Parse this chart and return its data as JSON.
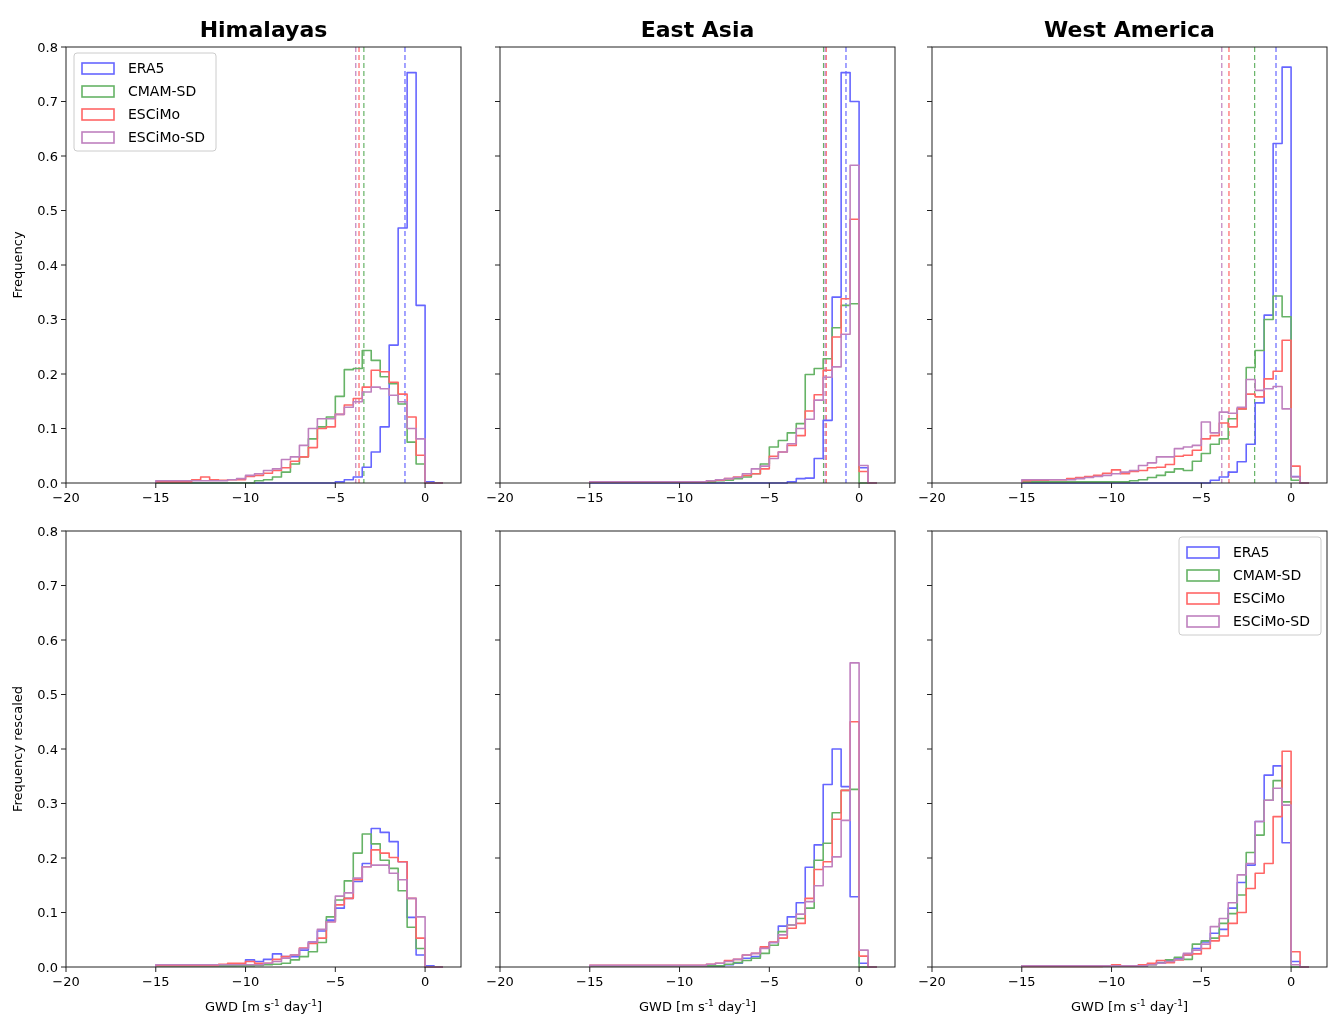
{
  "chart_data": [
    {
      "type": "histogram",
      "title": "Himalayas",
      "ylabel": "Frequency",
      "legend": "top left",
      "xlim": [
        -20,
        2
      ],
      "ylim": [
        0,
        0.8
      ],
      "xticks": [
        -20,
        -15,
        -10,
        -5,
        0
      ],
      "yticks": [
        {
          "value": 0,
          "label": "0.0"
        },
        0.1,
        0.2,
        0.3,
        0.4,
        0.5,
        0.6,
        0.7,
        0.8
      ],
      "bins": [
        -15,
        -14.5,
        -14,
        -13.5,
        -13,
        -12.5,
        -12,
        -11.5,
        -11,
        -10.5,
        -10,
        -9.5,
        -9,
        -8.5,
        -8,
        -7.5,
        -7,
        -6.5,
        -6,
        -5.5,
        -5,
        -4.5,
        -4,
        -3.5,
        -3,
        -2.5,
        -2,
        -1.5,
        -1,
        -0.5,
        0,
        0.5,
        1
      ],
      "series": [
        {
          "name": "ERA5",
          "color": "#6666ff",
          "values": [
            0,
            0,
            0,
            0,
            0,
            0,
            0,
            0,
            0,
            0,
            0,
            0,
            0,
            0,
            0,
            0,
            0,
            0,
            0,
            0,
            0.002,
            0.006,
            0.011,
            0.029,
            0.057,
            0.103,
            0.253,
            0.468,
            0.753,
            0.326,
            0.002,
            0
          ]
        },
        {
          "name": "CMAM-SD",
          "color": "#66b366",
          "values": [
            0,
            0,
            0,
            0,
            0,
            0,
            0,
            0,
            0,
            0,
            0,
            0.004,
            0.006,
            0.011,
            0.02,
            0.035,
            0.048,
            0.081,
            0.103,
            0.121,
            0.159,
            0.208,
            0.21,
            0.243,
            0.225,
            0.195,
            0.182,
            0.145,
            0.075,
            0.035,
            0,
            0
          ]
        },
        {
          "name": "ESCiMo",
          "color": "#ff6666",
          "values": [
            0.002,
            0.002,
            0.002,
            0.002,
            0.006,
            0.011,
            0.006,
            0.005,
            0.006,
            0.006,
            0.012,
            0.014,
            0.018,
            0.023,
            0.028,
            0.04,
            0.048,
            0.065,
            0.1,
            0.103,
            0.126,
            0.143,
            0.155,
            0.176,
            0.207,
            0.204,
            0.185,
            0.163,
            0.121,
            0.051,
            0,
            0
          ]
        },
        {
          "name": "ESCiMo-SD",
          "color": "#bf80bf",
          "values": [
            0.004,
            0.004,
            0.004,
            0.004,
            0.004,
            0.004,
            0.004,
            0.004,
            0.006,
            0.008,
            0.014,
            0.017,
            0.023,
            0.026,
            0.043,
            0.048,
            0.069,
            0.1,
            0.118,
            0.118,
            0.126,
            0.139,
            0.149,
            0.167,
            0.176,
            0.173,
            0.161,
            0.149,
            0.1,
            0.081,
            0,
            0
          ]
        }
      ],
      "ref_lines": [
        {
          "axis": "x",
          "value": -1.12,
          "color": "#6666ff",
          "line_style": "dashed"
        },
        {
          "axis": "x",
          "value": -3.41,
          "color": "#66b366",
          "line_style": "dashed"
        },
        {
          "axis": "x",
          "value": -3.68,
          "color": "#ff6666",
          "line_style": "dashed"
        },
        {
          "axis": "x",
          "value": -3.86,
          "color": "#bf80bf",
          "line_style": "dashed"
        }
      ]
    },
    {
      "type": "histogram",
      "title": "East Asia",
      "tick_labels": "x",
      "xlim": [
        -20,
        2
      ],
      "ylim": [
        0,
        0.8
      ],
      "xticks": [
        -20,
        -15,
        -10,
        -5,
        0
      ],
      "yticks": [
        0,
        0.1,
        0.2,
        0.3,
        0.4,
        0.5,
        0.6,
        0.7,
        0.8
      ],
      "bins": [
        -15,
        -14.5,
        -14,
        -13.5,
        -13,
        -12.5,
        -12,
        -11.5,
        -11,
        -10.5,
        -10,
        -9.5,
        -9,
        -8.5,
        -8,
        -7.5,
        -7,
        -6.5,
        -6,
        -5.5,
        -5,
        -4.5,
        -4,
        -3.5,
        -3,
        -2.5,
        -2,
        -1.5,
        -1,
        -0.5,
        0,
        0.5,
        1
      ],
      "series": [
        {
          "color": "#6666ff",
          "values": [
            0,
            0,
            0,
            0,
            0,
            0,
            0,
            0,
            0,
            0,
            0,
            0,
            0,
            0,
            0,
            0,
            0,
            0,
            0,
            0,
            0,
            0,
            0.002,
            0.008,
            0.009,
            0.045,
            0.115,
            0.341,
            0.753,
            0.7,
            0.028,
            0
          ]
        },
        {
          "color": "#66b366",
          "values": [
            0.002,
            0.002,
            0.002,
            0.002,
            0.002,
            0.002,
            0.002,
            0.002,
            0.002,
            0.002,
            0.002,
            0.002,
            0.002,
            0.002,
            0.004,
            0.005,
            0.008,
            0.011,
            0.017,
            0.035,
            0.066,
            0.078,
            0.092,
            0.109,
            0.199,
            0.21,
            0.228,
            0.285,
            0.326,
            0.329,
            0,
            0
          ]
        },
        {
          "color": "#ff6666",
          "values": [
            0.002,
            0.002,
            0.002,
            0.002,
            0.002,
            0.002,
            0.002,
            0.002,
            0.002,
            0.002,
            0.002,
            0.002,
            0.002,
            0.004,
            0.005,
            0.008,
            0.011,
            0.014,
            0.017,
            0.026,
            0.049,
            0.057,
            0.069,
            0.087,
            0.132,
            0.162,
            0.207,
            0.268,
            0.338,
            0.484,
            0.021,
            0
          ]
        },
        {
          "color": "#bf80bf",
          "values": [
            0.002,
            0.002,
            0.002,
            0.002,
            0.002,
            0.002,
            0.002,
            0.002,
            0.002,
            0.002,
            0.002,
            0.002,
            0.002,
            0.004,
            0.006,
            0.008,
            0.01,
            0.017,
            0.026,
            0.031,
            0.045,
            0.057,
            0.072,
            0.1,
            0.117,
            0.152,
            0.194,
            0.213,
            0.273,
            0.583,
            0.032,
            0
          ]
        }
      ],
      "ref_lines": [
        {
          "axis": "x",
          "value": -0.73,
          "color": "#6666ff",
          "line_style": "dashed"
        },
        {
          "axis": "x",
          "value": -1.98,
          "color": "#66b366",
          "line_style": "dashed"
        },
        {
          "axis": "x",
          "value": -1.83,
          "color": "#ff6666",
          "line_style": "dashed"
        },
        {
          "axis": "x",
          "value": -1.89,
          "color": "#bf80bf",
          "line_style": "dashed"
        }
      ]
    },
    {
      "type": "histogram",
      "title": "West America",
      "tick_labels": "x",
      "xlim": [
        -20,
        2
      ],
      "ylim": [
        0,
        0.8
      ],
      "xticks": [
        -20,
        -15,
        -10,
        -5,
        0
      ],
      "yticks": [
        0,
        0.1,
        0.2,
        0.3,
        0.4,
        0.5,
        0.6,
        0.7,
        0.8
      ],
      "bins": [
        -15,
        -14.5,
        -14,
        -13.5,
        -13,
        -12.5,
        -12,
        -11.5,
        -11,
        -10.5,
        -10,
        -9.5,
        -9,
        -8.5,
        -8,
        -7.5,
        -7,
        -6.5,
        -6,
        -5.5,
        -5,
        -4.5,
        -4,
        -3.5,
        -3,
        -2.5,
        -2,
        -1.5,
        -1,
        -0.5,
        0,
        0.5,
        1
      ],
      "series": [
        {
          "color": "#6666ff",
          "values": [
            0,
            0,
            0,
            0,
            0,
            0,
            0,
            0,
            0,
            0,
            0,
            0,
            0,
            0,
            0,
            0,
            0,
            0,
            0,
            0,
            0,
            0.005,
            0.011,
            0.02,
            0.039,
            0.071,
            0.147,
            0.308,
            0.623,
            0.763,
            0.012,
            0
          ]
        },
        {
          "color": "#66b366",
          "values": [
            0.002,
            0.002,
            0.002,
            0.002,
            0.002,
            0.002,
            0.002,
            0.002,
            0.002,
            0.002,
            0.002,
            0.002,
            0.004,
            0.006,
            0.01,
            0.014,
            0.02,
            0.026,
            0.023,
            0.04,
            0.054,
            0.071,
            0.081,
            0.118,
            0.136,
            0.212,
            0.243,
            0.3,
            0.343,
            0.305,
            0.005,
            0
          ]
        },
        {
          "color": "#ff6666",
          "values": [
            0.004,
            0.005,
            0.005,
            0.006,
            0.006,
            0.008,
            0.01,
            0.012,
            0.014,
            0.018,
            0.024,
            0.017,
            0.021,
            0.023,
            0.028,
            0.029,
            0.034,
            0.049,
            0.051,
            0.06,
            0.081,
            0.087,
            0.11,
            0.103,
            0.136,
            0.163,
            0.158,
            0.191,
            0.205,
            0.262,
            0.031,
            0
          ]
        },
        {
          "color": "#bf80bf",
          "values": [
            0.006,
            0.006,
            0.006,
            0.006,
            0.006,
            0.006,
            0.008,
            0.01,
            0.012,
            0.014,
            0.017,
            0.02,
            0.023,
            0.032,
            0.037,
            0.048,
            0.048,
            0.063,
            0.066,
            0.069,
            0.112,
            0.092,
            0.13,
            0.128,
            0.139,
            0.19,
            0.17,
            0.173,
            0.177,
            0.136,
            0.011,
            0
          ]
        }
      ],
      "ref_lines": [
        {
          "axis": "x",
          "value": -0.84,
          "color": "#6666ff",
          "line_style": "dashed"
        },
        {
          "axis": "x",
          "value": -2.03,
          "color": "#66b366",
          "line_style": "dashed"
        },
        {
          "axis": "x",
          "value": -3.46,
          "color": "#ff6666",
          "line_style": "dashed"
        },
        {
          "axis": "x",
          "value": -3.86,
          "color": "#bf80bf",
          "line_style": "dashed"
        }
      ]
    },
    {
      "type": "histogram",
      "ylabel": "Frequency rescaled",
      "xlabel": "GWD [m s$^{-1}$ day$^{-1}$]",
      "xlim": [
        -20,
        2
      ],
      "ylim": [
        0,
        0.8
      ],
      "xticks": [
        -20,
        -15,
        -10,
        -5,
        0
      ],
      "yticks": [
        {
          "value": 0,
          "label": "0.0"
        },
        0.1,
        0.2,
        0.3,
        0.4,
        0.5,
        0.6,
        0.7,
        0.8
      ],
      "bins": [
        -15,
        -14.5,
        -14,
        -13.5,
        -13,
        -12.5,
        -12,
        -11.5,
        -11,
        -10.5,
        -10,
        -9.5,
        -9,
        -8.5,
        -8,
        -7.5,
        -7,
        -6.5,
        -6,
        -5.5,
        -5,
        -4.5,
        -4,
        -3.5,
        -3,
        -2.5,
        -2,
        -1.5,
        -1,
        -0.5,
        0,
        0.5,
        1
      ],
      "series": [
        {
          "color": "#6666ff",
          "values": [
            0.003,
            0.003,
            0.003,
            0.003,
            0.003,
            0.003,
            0.003,
            0.003,
            0.003,
            0.005,
            0.013,
            0.01,
            0.014,
            0.024,
            0.019,
            0.019,
            0.031,
            0.046,
            0.066,
            0.086,
            0.108,
            0.126,
            0.157,
            0.19,
            0.254,
            0.247,
            0.23,
            0.193,
            0.091,
            0.022,
            0.002,
            0
          ]
        },
        {
          "color": "#66b366",
          "values": [
            0.002,
            0.002,
            0.002,
            0.002,
            0.002,
            0.002,
            0.002,
            0.002,
            0.002,
            0.002,
            0.002,
            0.003,
            0.004,
            0.005,
            0.007,
            0.013,
            0.019,
            0.028,
            0.045,
            0.092,
            0.123,
            0.158,
            0.209,
            0.244,
            0.226,
            0.196,
            0.181,
            0.14,
            0.073,
            0.034,
            0,
            0
          ]
        },
        {
          "color": "#ff6666",
          "values": [
            0.003,
            0.003,
            0.003,
            0.003,
            0.003,
            0.003,
            0.003,
            0.005,
            0.007,
            0.007,
            0.01,
            0.007,
            0.007,
            0.014,
            0.019,
            0.022,
            0.035,
            0.043,
            0.053,
            0.083,
            0.114,
            0.126,
            0.16,
            0.184,
            0.215,
            0.209,
            0.201,
            0.193,
            0.126,
            0.053,
            0,
            0
          ]
        },
        {
          "color": "#bf80bf",
          "values": [
            0.004,
            0.004,
            0.004,
            0.004,
            0.004,
            0.004,
            0.004,
            0.004,
            0.004,
            0.004,
            0.004,
            0.004,
            0.007,
            0.01,
            0.016,
            0.022,
            0.034,
            0.046,
            0.069,
            0.083,
            0.13,
            0.136,
            0.163,
            0.184,
            0.187,
            0.187,
            0.172,
            0.16,
            0.126,
            0.092,
            0,
            0
          ]
        }
      ]
    },
    {
      "type": "histogram",
      "xlabel": "GWD [m s$^{-1}$ day$^{-1}$]",
      "tick_labels": "x",
      "xlim": [
        -20,
        2
      ],
      "ylim": [
        0,
        0.8
      ],
      "xticks": [
        -20,
        -15,
        -10,
        -5,
        0
      ],
      "yticks": [
        0,
        0.1,
        0.2,
        0.3,
        0.4,
        0.5,
        0.6,
        0.7,
        0.8
      ],
      "bins": [
        -15,
        -14.5,
        -14,
        -13.5,
        -13,
        -12.5,
        -12,
        -11.5,
        -11,
        -10.5,
        -10,
        -9.5,
        -9,
        -8.5,
        -8,
        -7.5,
        -7,
        -6.5,
        -6,
        -5.5,
        -5,
        -4.5,
        -4,
        -3.5,
        -3,
        -2.5,
        -2,
        -1.5,
        -1,
        -0.5,
        0,
        0.5,
        1
      ],
      "series": [
        {
          "color": "#6666ff",
          "values": [
            0.002,
            0.002,
            0.002,
            0.002,
            0.002,
            0.002,
            0.002,
            0.002,
            0.002,
            0.002,
            0.002,
            0.002,
            0.002,
            0.002,
            0.002,
            0.004,
            0.007,
            0.016,
            0.019,
            0.035,
            0.045,
            0.075,
            0.092,
            0.118,
            0.183,
            0.224,
            0.335,
            0.4,
            0.331,
            0.129,
            0.007,
            0
          ]
        },
        {
          "color": "#66b366",
          "values": [
            0.002,
            0.002,
            0.002,
            0.002,
            0.002,
            0.002,
            0.002,
            0.002,
            0.002,
            0.002,
            0.002,
            0.002,
            0.002,
            0.002,
            0.002,
            0.005,
            0.008,
            0.012,
            0.016,
            0.025,
            0.04,
            0.065,
            0.077,
            0.089,
            0.108,
            0.196,
            0.227,
            0.283,
            0.324,
            0.326,
            0,
            0
          ]
        },
        {
          "color": "#ff6666",
          "values": [
            0.003,
            0.003,
            0.003,
            0.003,
            0.003,
            0.003,
            0.003,
            0.003,
            0.003,
            0.003,
            0.003,
            0.003,
            0.003,
            0.005,
            0.007,
            0.012,
            0.014,
            0.022,
            0.025,
            0.037,
            0.046,
            0.053,
            0.071,
            0.08,
            0.126,
            0.179,
            0.193,
            0.271,
            0.324,
            0.45,
            0.02,
            0
          ]
        },
        {
          "color": "#bf80bf",
          "values": [
            0.003,
            0.003,
            0.003,
            0.003,
            0.003,
            0.003,
            0.003,
            0.003,
            0.003,
            0.003,
            0.003,
            0.003,
            0.003,
            0.005,
            0.007,
            0.01,
            0.014,
            0.022,
            0.025,
            0.034,
            0.045,
            0.059,
            0.077,
            0.097,
            0.12,
            0.149,
            0.184,
            0.202,
            0.269,
            0.558,
            0.031,
            0
          ]
        }
      ]
    },
    {
      "type": "histogram",
      "xlabel": "GWD [m s$^{-1}$ day$^{-1}$]",
      "tick_labels": "x",
      "legend": "top right",
      "xlim": [
        -20,
        2
      ],
      "ylim": [
        0,
        0.8
      ],
      "xticks": [
        -20,
        -15,
        -10,
        -5,
        0
      ],
      "yticks": [
        0,
        0.1,
        0.2,
        0.3,
        0.4,
        0.5,
        0.6,
        0.7,
        0.8
      ],
      "bins": [
        -15,
        -14.5,
        -14,
        -13.5,
        -13,
        -12.5,
        -12,
        -11.5,
        -11,
        -10.5,
        -10,
        -9.5,
        -9,
        -8.5,
        -8,
        -7.5,
        -7,
        -6.5,
        -6,
        -5.5,
        -5,
        -4.5,
        -4,
        -3.5,
        -3,
        -2.5,
        -2,
        -1.5,
        -1,
        -0.5,
        0,
        0.5,
        1
      ],
      "series": [
        {
          "name": "ERA5",
          "color": "#6666ff",
          "values": [
            0.002,
            0.002,
            0.002,
            0.002,
            0.002,
            0.002,
            0.002,
            0.002,
            0.002,
            0.002,
            0.002,
            0.002,
            0.002,
            0.004,
            0.006,
            0.008,
            0.012,
            0.016,
            0.022,
            0.034,
            0.046,
            0.062,
            0.069,
            0.108,
            0.155,
            0.187,
            0.267,
            0.352,
            0.369,
            0.228,
            0.01,
            0
          ]
        },
        {
          "name": "CMAM-SD",
          "color": "#66b366",
          "values": [
            0.002,
            0.002,
            0.002,
            0.002,
            0.002,
            0.002,
            0.002,
            0.002,
            0.002,
            0.002,
            0.002,
            0.002,
            0.002,
            0.002,
            0.004,
            0.007,
            0.013,
            0.018,
            0.014,
            0.042,
            0.048,
            0.053,
            0.08,
            0.098,
            0.132,
            0.21,
            0.242,
            0.306,
            0.342,
            0.303,
            0,
            0
          ]
        },
        {
          "name": "ESCiMo",
          "color": "#ff6666",
          "values": [
            0.001,
            0.001,
            0.001,
            0.001,
            0.001,
            0.001,
            0.001,
            0.001,
            0.001,
            0.002,
            0.004,
            0.002,
            0.002,
            0.004,
            0.007,
            0.012,
            0.008,
            0.013,
            0.022,
            0.024,
            0.034,
            0.048,
            0.057,
            0.08,
            0.1,
            0.144,
            0.172,
            0.19,
            0.276,
            0.396,
            0.028,
            0
          ]
        },
        {
          "name": "ESCiMo-SD",
          "color": "#bf80bf",
          "values": [
            0.002,
            0.002,
            0.002,
            0.002,
            0.002,
            0.002,
            0.002,
            0.002,
            0.002,
            0.002,
            0.002,
            0.002,
            0.002,
            0.002,
            0.004,
            0.007,
            0.01,
            0.014,
            0.025,
            0.031,
            0.042,
            0.074,
            0.089,
            0.118,
            0.169,
            0.19,
            0.267,
            0.306,
            0.328,
            0.297,
            0.004,
            0
          ]
        }
      ]
    }
  ]
}
